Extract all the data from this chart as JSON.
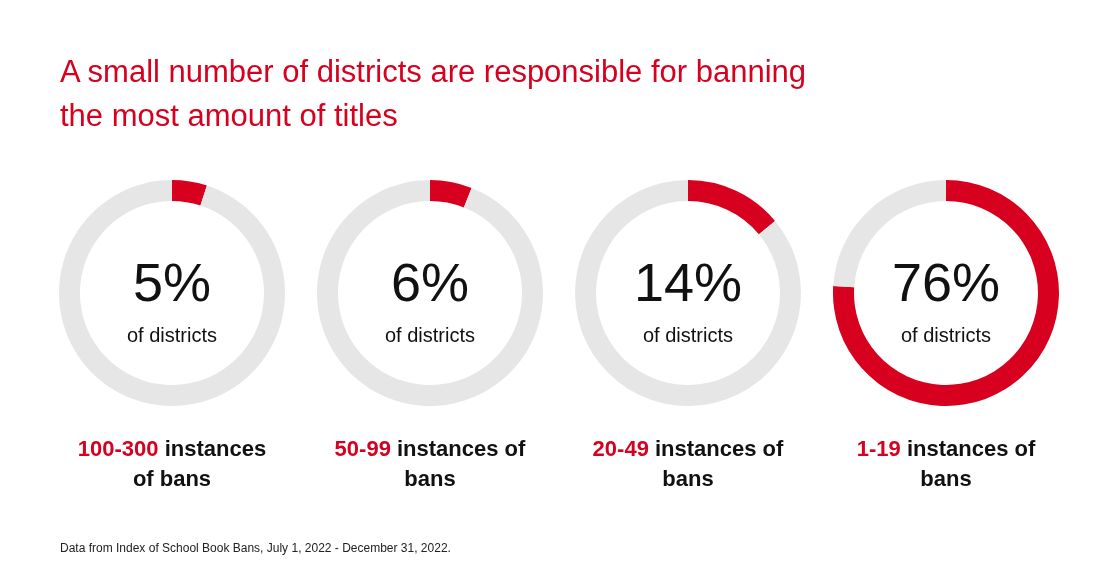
{
  "chart_data": [
    {
      "type": "donut",
      "title": "A small number of districts are responsible for banning the most amount of titles",
      "subtitle": "of districts",
      "xlabel": "100-300 instances of bans",
      "categories": [
        null,
        null
      ],
      "values": [
        5,
        95
      ],
      "colors": [
        "#d7001f",
        "#e6e6e6"
      ],
      "value_labels": [
        "5%",
        null
      ]
    },
    {
      "type": "donut",
      "subtitle": "of districts",
      "xlabel": "50-99 instances of bans",
      "categories": [
        null,
        null
      ],
      "values": [
        6,
        94
      ],
      "colors": [
        "#d7001f",
        "#e6e6e6"
      ],
      "value_labels": [
        "6%",
        null
      ]
    },
    {
      "type": "donut",
      "subtitle": "of districts",
      "xlabel": "20-49 instances of bans",
      "categories": [
        null,
        null
      ],
      "values": [
        14,
        86
      ],
      "colors": [
        "#d7001f",
        "#e6e6e6"
      ],
      "value_labels": [
        "14%",
        null
      ]
    },
    {
      "type": "donut",
      "subtitle": "of districts",
      "xlabel": "1-19 instances of bans",
      "categories": [
        null,
        null
      ],
      "values": [
        76,
        24
      ],
      "colors": [
        "#d7001f",
        "#e6e6e6"
      ],
      "value_labels": [
        "76%",
        null
      ],
      "annotations": [
        "Data from Index of School Book Bans, July 1, 2022 - December 31, 2022."
      ]
    }
  ]
}
